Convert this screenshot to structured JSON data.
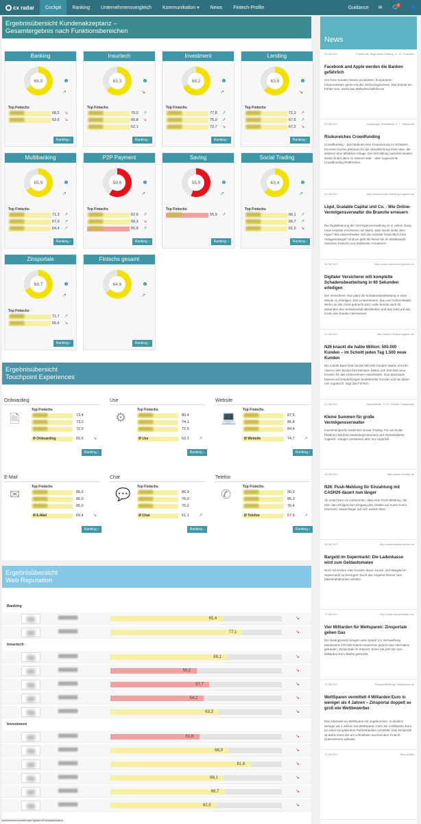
{
  "nav": {
    "logo": "cx radar",
    "items": [
      "Cockpit",
      "Ranking",
      "Unternehmensvergleich",
      "Kommunikation ▾",
      "News",
      "Fintech-Profile"
    ],
    "guidance": "Guidance",
    "badge": "3"
  },
  "sec1": {
    "title_l1": "Ergebnisübersicht Kundenakzeptanz –",
    "title_l2": "Gesamtergebnis nach Funktionsbereichen",
    "color": "#3b8c91"
  },
  "top_fintechs": "Top Fintechs",
  "ranking": "Ranking ›",
  "cards": [
    {
      "name": "Banking",
      "score": "66,0",
      "pct": 0.66,
      "color": "#f2e000",
      "trend": "up",
      "rows": [
        {
          "v": "68,5",
          "t": "dn"
        },
        {
          "v": "63,6",
          "t": "dn"
        }
      ]
    },
    {
      "name": "Insurtech",
      "score": "63,3",
      "pct": 0.633,
      "color": "#f2e000",
      "trend": "dn",
      "rows": [
        {
          "v": "70,0",
          "t": "up"
        },
        {
          "v": "66,8",
          "t": "dn"
        },
        {
          "v": "62,1",
          "t": ""
        }
      ]
    },
    {
      "name": "Investment",
      "score": "68,2",
      "pct": 0.682,
      "color": "#f2e000",
      "trend": "up",
      "rows": [
        {
          "v": "77,8",
          "t": "up"
        },
        {
          "v": "75,0",
          "t": "up"
        },
        {
          "v": "72,7",
          "t": "dn"
        }
      ]
    },
    {
      "name": "Lending",
      "score": "63,9",
      "pct": 0.639,
      "color": "#f2e000",
      "trend": "dn",
      "rows": [
        {
          "v": "71,3",
          "t": "up"
        },
        {
          "v": "67,5",
          "t": "up"
        },
        {
          "v": "67,2",
          "t": "dn"
        }
      ]
    },
    {
      "name": "Multibanking",
      "score": "65,9",
      "pct": 0.659,
      "color": "#f2e000",
      "trend": "up",
      "rows": [
        {
          "v": "71,3",
          "t": "up"
        },
        {
          "v": "67,9",
          "t": "up"
        },
        {
          "v": "64,4",
          "t": "up"
        }
      ]
    },
    {
      "name": "P2P Payment",
      "score": "59,6",
      "pct": 0.596,
      "color": "#e8101a",
      "trend": "up",
      "rows": [
        {
          "v": "62,6",
          "t": "up"
        },
        {
          "v": "60,3",
          "t": "dn"
        },
        {
          "v": "55,9",
          "t": "up",
          "red": true
        }
      ]
    },
    {
      "name": "Saving",
      "score": "55,9",
      "pct": 0.559,
      "color": "#e8101a",
      "trend": "up",
      "rows": [
        {
          "v": "55,9",
          "t": "up",
          "red": true
        }
      ]
    },
    {
      "name": "Social Trading",
      "score": "63,4",
      "pct": 0.634,
      "color": "#f2e000",
      "trend": "up",
      "rows": [
        {
          "v": "66,1",
          "t": "up"
        },
        {
          "v": "65,7",
          "t": "up"
        },
        {
          "v": "61,0",
          "t": "dn"
        }
      ]
    },
    {
      "name": "Zinsportale",
      "score": "68,7",
      "pct": 0.687,
      "color": "#f2e000",
      "trend": "up",
      "rows": [
        {
          "v": "71,7",
          "t": "up"
        },
        {
          "v": "65,6",
          "t": "dn"
        }
      ]
    },
    {
      "name": "Fintechs gesamt",
      "score": "64,6",
      "pct": 0.646,
      "color": "#f2e000",
      "trend": "up",
      "rows": []
    }
  ],
  "sec2": {
    "title_l1": "Ergebnisübersicht",
    "title_l2": "Touchpoint Experiences",
    "color": "#4a93a8"
  },
  "touchpoints": [
    {
      "name": "Onboarding",
      "icon": "document-icon",
      "glyph": "🗎",
      "rows": [
        "73,4",
        "73,2",
        "72,9"
      ],
      "avg_label": "Ø Onboarding",
      "avg": "65,6",
      "avg_red": false,
      "t": "dn"
    },
    {
      "name": "Use",
      "icon": "gears-icon",
      "glyph": "⚙",
      "rows": [
        "80,4",
        "74,1",
        "72,5"
      ],
      "avg_label": "Ø Use",
      "avg": "62,3",
      "avg_red": false,
      "t": "up"
    },
    {
      "name": "Website",
      "icon": "laptop-icon",
      "glyph": "💻",
      "rows": [
        "87,5",
        "85,8",
        "84,4"
      ],
      "avg_label": "Ø Website",
      "avg": "74,7",
      "avg_red": false,
      "t": "up"
    },
    {
      "name": "E-Mail",
      "icon": "envelope-icon",
      "glyph": "✉",
      "rows": [
        "86,6",
        "86,0",
        "85,0"
      ],
      "avg_label": "Ø E-Mail",
      "avg": "69,4",
      "avg_red": false,
      "t": "dn"
    },
    {
      "name": "Chat",
      "icon": "chat-bubbles-icon",
      "glyph": "💬",
      "rows": [
        "86,9",
        "76,0",
        "75,0"
      ],
      "avg_label": "Ø Chat",
      "avg": "51,1",
      "avg_red": true,
      "t": "up"
    },
    {
      "name": "Telefon",
      "icon": "phone-icon",
      "glyph": "✆",
      "rows": [
        "90,3",
        "85,3",
        "76,4"
      ],
      "avg_label": "Ø Telefon",
      "avg": "57,9",
      "avg_red": true,
      "t": "up"
    }
  ],
  "sec3": {
    "title_l1": "Ergebnisübersicht",
    "title_l2": "Web Reputation",
    "color": "#86c8e5"
  },
  "web": [
    {
      "cat": "Banking"
    },
    {
      "v": "65,4",
      "p": 0.654,
      "red": false
    },
    {
      "v": "77,1",
      "p": 0.771,
      "red": false
    },
    {
      "cat": "Insurtech"
    },
    {
      "v": "68,1",
      "p": 0.681,
      "red": false
    },
    {
      "v": "50,2",
      "p": 0.502,
      "red": true
    },
    {
      "v": "57,7",
      "p": 0.577,
      "red": true
    },
    {
      "v": "54,2",
      "p": 0.542,
      "red": true
    },
    {
      "v": "63,3",
      "p": 0.633,
      "red": false
    },
    {
      "cat": "Investment"
    },
    {
      "v": "51,8",
      "p": 0.518,
      "red": true
    },
    {
      "v": "68,9",
      "p": 0.689,
      "red": false
    },
    {
      "v": "81,8",
      "p": 0.818,
      "red": false
    },
    {
      "v": "66,1",
      "p": 0.661,
      "red": false
    },
    {
      "v": "66,7",
      "p": 0.667,
      "red": false
    },
    {
      "v": "62,0",
      "p": 0.62,
      "red": false
    }
  ],
  "news": {
    "title": "News",
    "items": [
      {
        "d": "22.08.2017",
        "s": "Frankfurter Allgemeine Zeitung, S. 22, Finanzen",
        "h": "Facebook and Apple werden die Banken gefährlich",
        "t": "Um ihren Kunden Neues anzubieten, kooperieren Finanzinstitute gerne mit den Technologieriesen. Das könnte ein Fehler sein, warnt das Weltwirtschaftsforum."
      },
      {
        "d": "22.08.2017",
        "s": "Hamburger Abendblatt, S. 7, Wirtschaft",
        "h": "Risikoreiches Crowdfunding",
        "t": "Crowdfunding – das bedeutet eine Finanzierung im Schwarm. Da einen kurzen Zeitraum für die Verwirklichung einer Idee, die anderen eine attraktive Anlage. Die Vermittlung zwischen beiden Seiten findet dann im Internet statt – über sogenannte Crowdfunding-Plattformen."
      },
      {
        "d": "21.08.2017",
        "s": "http://www.private-banking-magazin.de",
        "h": "Liqid, Scalable Capital und Co. - Wie Online-Vermögensverwalter die Branche erneuern",
        "t": "Die Digitalisierung der Vermögensverwaltung ist in vollem Gang neue Anbieter erschienen am Markt. Was steckt hinter dem Hype? Wie unterscheiden sich die Anbieter hinsichtlich ihrer Anlagestrategie? Und wo geht die Reise hin im Wettbewerb zwischen Fintechs und etablierten Anbietern?"
      },
      {
        "d": "21.08.2017",
        "s": "http://www.versicherungsbote.de",
        "h": "Digitaler Versicherer will komplette Schadensbearbeitung in 60 Sekunden erledigen",
        "t": "Der Versicherer One plant die Schadensbearbeitung in einer Minute zu erledigen. Das Unternehmen, das vom Online-Makler Wefox an den Start gebracht wird, wolle bereits nach 60 Sekunden den Schadensfall abschließen und das Geld auf das Konto des Kunden überweisen."
      },
      {
        "d": "21.08.2017",
        "s": "http://www.it-finanzmagazin.de",
        "h": "N26 knackt die halbe Million: 500.000 Kunden – im Schnitt jeden Tag 1.500 neue Kunden",
        "t": "Die mobile Bank N26 hat die 500.000 Kunden-Marke erreicht. Allein in den letzten fünf Monaten hätten sich 200.000 neue Kunden für das Unternehmen entschieden. Das Wachstum basiere auf Empfehlungen bestehender Kunden und sei damit rein organisch, sagt das FinTech."
      },
      {
        "d": "21.08.2017",
        "s": "Handelsblatt, S. 22, Private Geldanlage",
        "h": "Kleine Summen für große Vermögensverwalter",
        "t": "Investmentprofis entdecken Social Trading. Für sie ist die Plattform Wikifolio Marketinginstrument und Vertriebsfaktor zugleich. Anleger investieren aber nur zögerlich."
      },
      {
        "d": "18.08.2017",
        "s": "http://www.mobiflip.de",
        "h": "N26: Push-Meldung für Einzahlung mit CASH26 dauert nun länger",
        "t": "Ab sofort kann es vorkommen, dass eine Push-Meldung, die über den erfolgreichen Eingang des Geldes auf euren Konto informiert, etwas länger auf sich warten lässt."
      },
      {
        "d": "18.08.2017",
        "s": "http://www.sueddeutsche.de",
        "h": "Bargeld im Supermarkt: Die Ladenkasse wird zum Geldautomaten",
        "t": "Noch schrecken viele Kunden davor zurück, sich Bargeld im Supermarkt zu besorgen. Doch das Angebot könnte zum Massenphänomen werden."
      },
      {
        "d": "17.08.2017",
        "s": "http://www.handelsblatt.com",
        "h": "Vier Milliarden für Weltsparen: Zinsportale geben Gas",
        "t": "Die Niedrigzinsen bringen viele Sparer zur Verzweiflung. Mindestens 170.000 haben inzwischen jedoch eine Alternative gefunden: Zinsportale im Internet. Eines hat jetzt die Vier-Milliarden-Euro-Marke geknackt."
      },
      {
        "d": "17.08.2017",
        "s": "Pressemitteilung, Weltsparen.de",
        "h": "WeltSparen vermittelt 4 Milliarden Euro in weniger als 4 Jahren – Zinsportal doppelt so groß wie Wettbewerber",
        "t": "Das Interesse an WeltSparen ist ungebrochen: In deutlich weniger als 4 Jahren hat WeltSparen mehr als 4 Milliarden Euro an seine europäischen Partnerbanken vermittelt. Das Zinsportal ist damit eines der am schnellsten wachsenden Fintech-Unternehmen weltweit."
      },
      {
        "d": "17.08.2017",
        "s": "Blog-Artikel",
        "h": "",
        "t": ""
      }
    ]
  },
  "footer_url": "/unternehmen/cashboard?gelder,f3?#analysis/tabs"
}
